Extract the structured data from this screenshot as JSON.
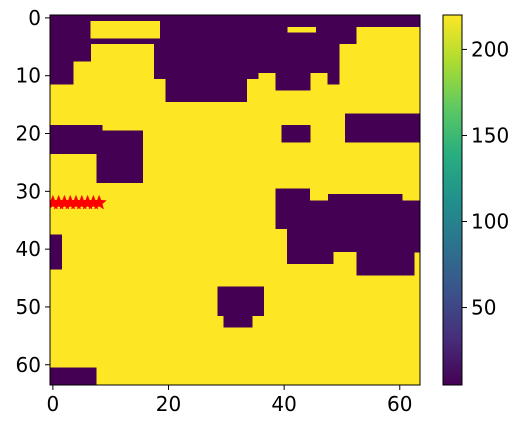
{
  "chart_data": {
    "type": "heatmap",
    "title": "",
    "xlabel": "",
    "ylabel": "",
    "grid": false,
    "colormap": "viridis",
    "colors": {
      "low": "#440154",
      "high": "#fde725",
      "marker": "#ff0000"
    },
    "image_shape": [
      64,
      64
    ],
    "extent": {
      "x": [
        -0.5,
        63.5
      ],
      "y": [
        63.5,
        -0.5
      ]
    },
    "x_ticks": [
      0,
      20,
      40,
      60
    ],
    "x_tick_labels": [
      "0",
      "20",
      "40",
      "60"
    ],
    "y_ticks": [
      0,
      10,
      20,
      30,
      40,
      50,
      60
    ],
    "y_tick_labels": [
      "0",
      "10",
      "20",
      "30",
      "40",
      "50",
      "60"
    ],
    "value_low": 5,
    "value_high": 220,
    "colorbar": {
      "range": [
        5,
        220
      ],
      "ticks": [
        50,
        100,
        150,
        200
      ],
      "tick_labels": [
        "50",
        "100",
        "150",
        "200"
      ]
    },
    "low_regions": [
      {
        "x": [
          0,
          63
        ],
        "y": [
          0,
          1
        ]
      },
      {
        "x": [
          0,
          3
        ],
        "y": [
          0,
          11
        ]
      },
      {
        "x": [
          0,
          6
        ],
        "y": [
          2,
          7
        ]
      },
      {
        "x": [
          7,
          40
        ],
        "y": [
          0,
          4
        ]
      },
      {
        "x": [
          18,
          35
        ],
        "y": [
          4,
          10
        ]
      },
      {
        "x": [
          20,
          33
        ],
        "y": [
          10,
          14
        ]
      },
      {
        "x": [
          35,
          48
        ],
        "y": [
          3,
          9
        ]
      },
      {
        "x": [
          39,
          44
        ],
        "y": [
          9,
          12
        ]
      },
      {
        "x": [
          46,
          52
        ],
        "y": [
          0,
          4
        ]
      },
      {
        "x": [
          48,
          49
        ],
        "y": [
          4,
          11
        ]
      },
      {
        "x": [
          0,
          8
        ],
        "y": [
          19,
          23
        ]
      },
      {
        "x": [
          8,
          15
        ],
        "y": [
          20,
          28
        ]
      },
      {
        "x": [
          40,
          44
        ],
        "y": [
          19,
          21
        ]
      },
      {
        "x": [
          51,
          63
        ],
        "y": [
          17,
          21
        ]
      },
      {
        "x": [
          39,
          47
        ],
        "y": [
          30,
          36
        ]
      },
      {
        "x": [
          47,
          63
        ],
        "y": [
          31,
          40
        ]
      },
      {
        "x": [
          41,
          55
        ],
        "y": [
          36,
          42
        ]
      },
      {
        "x": [
          52,
          62
        ],
        "y": [
          40,
          44
        ]
      },
      {
        "x": [
          29,
          36
        ],
        "y": [
          47,
          51
        ]
      },
      {
        "x": [
          30,
          34
        ],
        "y": [
          51,
          53
        ]
      },
      {
        "x": [
          0,
          1
        ],
        "y": [
          38,
          43
        ]
      },
      {
        "x": [
          0,
          7
        ],
        "y": [
          61,
          63
        ]
      }
    ],
    "high_regions": [
      {
        "x": [
          7,
          18
        ],
        "y": [
          1,
          3
        ]
      },
      {
        "x": [
          61,
          63
        ],
        "y": [
          28,
          31
        ]
      },
      {
        "x": [
          45,
          47
        ],
        "y": [
          30,
          31
        ]
      },
      {
        "x": [
          49,
          52
        ],
        "y": [
          41,
          44
        ]
      },
      {
        "x": [
          35,
          36
        ],
        "y": [
          32,
          33
        ]
      }
    ],
    "series": [
      {
        "type": "scatter",
        "marker": "star",
        "x": [
          0,
          1,
          2,
          3,
          4,
          5,
          6,
          7,
          8
        ],
        "y": [
          32,
          32,
          32,
          32,
          32,
          32,
          32,
          32,
          32
        ]
      }
    ]
  }
}
